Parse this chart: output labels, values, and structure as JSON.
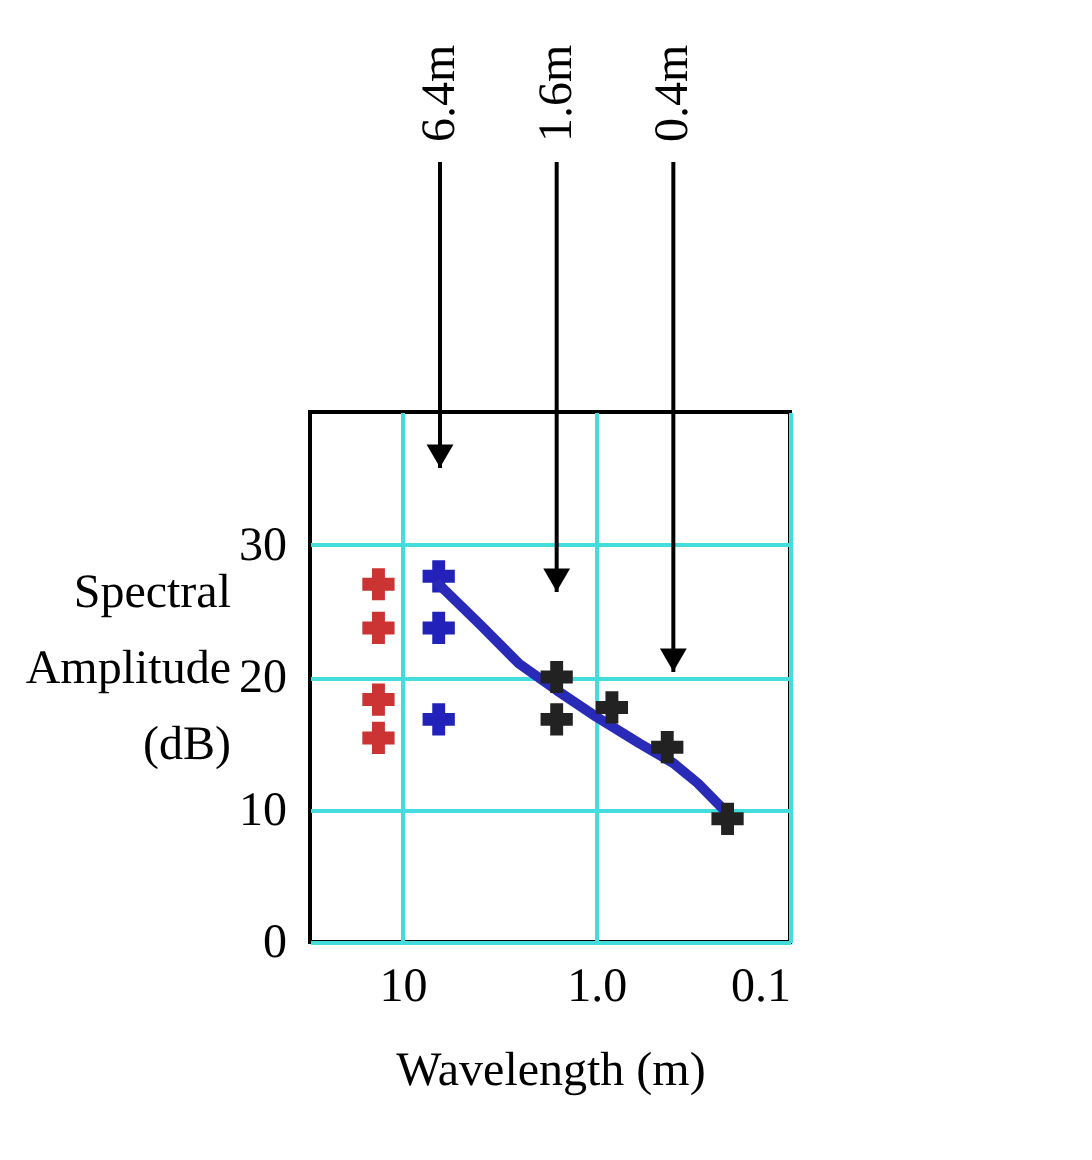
{
  "chart_data": {
    "type": "scatter",
    "xlabel": "Wavelength (m)",
    "ylabel": "Spectral Amplitude (dB)",
    "log": "x",
    "xlim": [
      30,
      0.1
    ],
    "xticks": [
      10,
      {
        "value": 1,
        "label": "1.0"
      },
      0.1
    ],
    "ylim": [
      0,
      40
    ],
    "yticks": [
      0,
      10,
      20,
      30
    ],
    "grid": true,
    "marker": "cross",
    "series": [
      {
        "color": "#cc3333",
        "x": [
          13.3,
          13.3,
          13.3,
          13.3
        ],
        "values": [
          27,
          23.7,
          18.3,
          15.4
        ]
      },
      {
        "color": "#2222bb",
        "x": [
          6.5,
          6.5,
          6.5
        ],
        "values": [
          27.6,
          23.7,
          16.8
        ]
      },
      {
        "type": "line",
        "marker": "none",
        "color": "#2a2ab8",
        "x": [
          6.5,
          4,
          2.5,
          1.6,
          1,
          0.6,
          0.4,
          0.3,
          0.22
        ],
        "values": [
          27,
          24,
          21,
          19,
          17,
          15,
          13.5,
          12,
          10
        ]
      },
      {
        "color": "#222222",
        "x": [
          1.6,
          1.6,
          0.83,
          0.43,
          0.21
        ],
        "values": [
          20,
          16.8,
          17.7,
          14.7,
          9.3
        ]
      }
    ],
    "ref_lines": [
      {
        "axis": "x",
        "value": 6.4,
        "label": "6.4m"
      },
      {
        "axis": "x",
        "value": 1.6,
        "label": "1.6m"
      },
      {
        "axis": "x",
        "value": 0.4,
        "label": "0.4m"
      }
    ]
  }
}
